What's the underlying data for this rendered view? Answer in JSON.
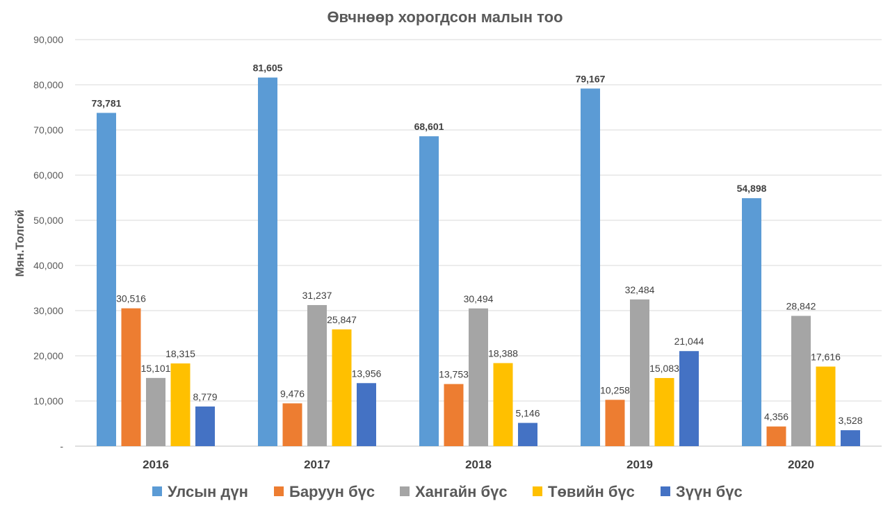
{
  "chart_data": {
    "type": "bar",
    "title": "Өвчнөөр хорогдсон малын тоо",
    "xlabel": "",
    "ylabel": "Мян.Толгой",
    "ylim": [
      0,
      90000
    ],
    "yticks": [
      "-",
      "10,000",
      "20,000",
      "30,000",
      "40,000",
      "50,000",
      "60,000",
      "70,000",
      "80,000",
      "90,000"
    ],
    "grid": true,
    "legend_position": "bottom",
    "categories": [
      "2016",
      "2017",
      "2018",
      "2019",
      "2020"
    ],
    "series": [
      {
        "name": "Улсын дүн",
        "color": "#5b9bd5",
        "values": [
          73781,
          81605,
          68601,
          79167,
          54898
        ],
        "labels": [
          "73,781",
          "81,605",
          "68,601",
          "79,167",
          "54,898"
        ],
        "bold_labels": true
      },
      {
        "name": "Баруун бүс",
        "color": "#ed7d31",
        "values": [
          30516,
          9476,
          13753,
          10258,
          4356
        ],
        "labels": [
          "30,516",
          "9,476",
          "13,753",
          "10,258",
          "4,356"
        ],
        "bold_labels": false
      },
      {
        "name": "Хангайн бүс",
        "color": "#a5a5a5",
        "values": [
          15101,
          31237,
          30494,
          32484,
          28842
        ],
        "labels": [
          "15,101",
          "31,237",
          "30,494",
          "32,484",
          "28,842"
        ],
        "bold_labels": false
      },
      {
        "name": "Төвийн бүс",
        "color": "#ffc000",
        "values": [
          18315,
          25847,
          18388,
          15083,
          17616
        ],
        "labels": [
          "18,315",
          "25,847",
          "18,388",
          "15,083",
          "17,616"
        ],
        "bold_labels": false
      },
      {
        "name": "Зүүн бүс",
        "color": "#4472c4",
        "values": [
          8779,
          13956,
          5146,
          21044,
          3528
        ],
        "labels": [
          "8,779",
          "13,956",
          "5,146",
          "21,044",
          "3,528"
        ],
        "bold_labels": false
      }
    ]
  }
}
